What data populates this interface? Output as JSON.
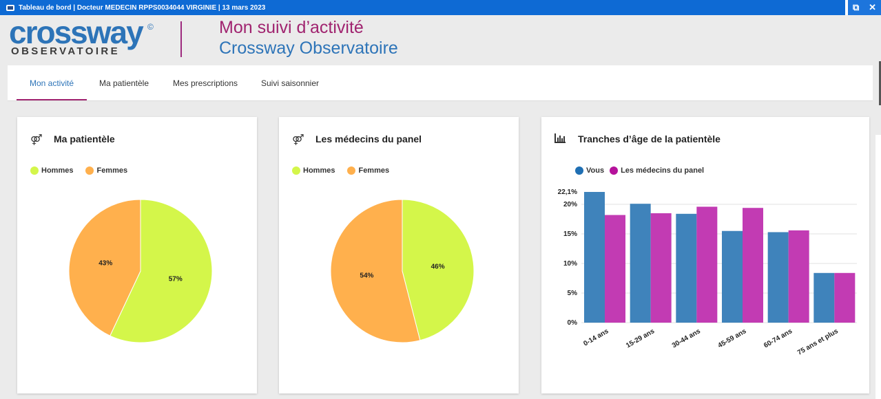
{
  "window": {
    "title": "Tableau de bord  |  Docteur MEDECIN RPPS0034044 VIRGINIE  |  13 mars 2023",
    "restore_symbol": "⧉",
    "close_symbol": "✕"
  },
  "header": {
    "logo_main": "crossway",
    "logo_mark": "©",
    "logo_sub": "OBSERVATOIRE",
    "title_line1": "Mon suivi d’activité",
    "title_line2": "Crossway Observatoire"
  },
  "tabs": [
    {
      "label": "Mon activité",
      "active": true
    },
    {
      "label": "Ma patientèle",
      "active": false
    },
    {
      "label": "Mes prescriptions",
      "active": false
    },
    {
      "label": "Suivi saisonnier",
      "active": false
    }
  ],
  "cards": {
    "patientele": {
      "title": "Ma patientèle",
      "icon": "gender-icon",
      "icon_glyph": "⚤",
      "legend": [
        {
          "label": "Hommes",
          "color": "#d4f64a"
        },
        {
          "label": "Femmes",
          "color": "#ffb04d"
        }
      ]
    },
    "panel": {
      "title": "Les médecins du panel",
      "icon": "gender-icon",
      "icon_glyph": "⚤",
      "legend": [
        {
          "label": "Hommes",
          "color": "#d4f64a"
        },
        {
          "label": "Femmes",
          "color": "#ffb04d"
        }
      ]
    },
    "tranches": {
      "title": "Tranches d’âge de la patientèle",
      "icon": "bar-chart-icon",
      "icon_glyph": "📊",
      "legend": [
        {
          "label": "Vous",
          "color": "#3f83bb"
        },
        {
          "label": "Les médecins du panel",
          "color": "#c23bb3"
        }
      ]
    }
  },
  "chart_data": [
    {
      "type": "pie",
      "title": "Ma patientèle",
      "labels": [
        "Hommes",
        "Femmes"
      ],
      "values": [
        57,
        43
      ],
      "value_labels": [
        "57%",
        "43%"
      ],
      "colors": [
        "#d4f64a",
        "#ffb04d"
      ]
    },
    {
      "type": "pie",
      "title": "Les médecins du panel",
      "labels": [
        "Hommes",
        "Femmes"
      ],
      "values": [
        46,
        54
      ],
      "value_labels": [
        "46%",
        "54%"
      ],
      "colors": [
        "#d4f64a",
        "#ffb04d"
      ]
    },
    {
      "type": "bar",
      "title": "Tranches d’âge de la patientèle",
      "categories": [
        "0-14 ans",
        "15-29 ans",
        "30-44 ans",
        "45-59 ans",
        "60-74 ans",
        "75 ans et plus"
      ],
      "series": [
        {
          "name": "Vous",
          "color": "#3f83bb",
          "values": [
            22.1,
            20.1,
            18.4,
            15.5,
            15.3,
            8.4
          ]
        },
        {
          "name": "Les médecins du panel",
          "color": "#c23bb3",
          "values": [
            18.2,
            18.5,
            19.6,
            19.4,
            15.6,
            8.4
          ]
        }
      ],
      "ylim": [
        0,
        22.1
      ],
      "yticks": [
        "0%",
        "5%",
        "10%",
        "15%",
        "20%",
        "22,1%"
      ],
      "ytick_values": [
        0,
        5,
        10,
        15,
        20,
        22.1
      ],
      "grid": true,
      "legend_position": "top-left"
    }
  ]
}
